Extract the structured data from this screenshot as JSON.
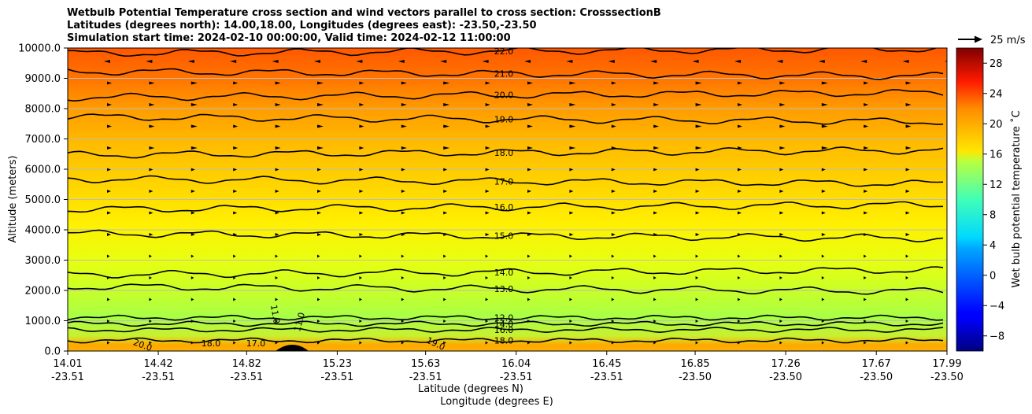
{
  "title": {
    "line1": "Wetbulb Potential Temperature cross section and wind vectors parallel to cross section: CrosssectionB",
    "line2": "Latitudes (degrees north): 14.00,18.00, Longitudes (degrees east): -23.50,-23.50",
    "line3": "Simulation start time: 2024-02-10 00:00:00, Valid time: 2024-02-12 11:00:00"
  },
  "chart_data": {
    "type": "heatmap",
    "ylabel": "Altitude (meters)",
    "xlabel_line1": "Latitude (degrees N)",
    "xlabel_line2": "Longitude (degrees E)",
    "ylim": [
      0,
      10000
    ],
    "y_ticks": [
      "0.0",
      "1000.0",
      "2000.0",
      "3000.0",
      "4000.0",
      "5000.0",
      "6000.0",
      "7000.0",
      "8000.0",
      "9000.0",
      "10000.0"
    ],
    "x_ticks": [
      {
        "lat": "14.01",
        "lon": "-23.51"
      },
      {
        "lat": "14.42",
        "lon": "-23.51"
      },
      {
        "lat": "14.82",
        "lon": "-23.51"
      },
      {
        "lat": "15.23",
        "lon": "-23.51"
      },
      {
        "lat": "15.63",
        "lon": "-23.51"
      },
      {
        "lat": "16.04",
        "lon": "-23.51"
      },
      {
        "lat": "16.45",
        "lon": "-23.51"
      },
      {
        "lat": "16.85",
        "lon": "-23.50"
      },
      {
        "lat": "17.26",
        "lon": "-23.50"
      },
      {
        "lat": "17.67",
        "lon": "-23.50"
      },
      {
        "lat": "17.99",
        "lon": "-23.50"
      }
    ],
    "grid": "horizontal lines at y ticks",
    "colorbar": {
      "label": "Wet bulb potential temperature ˚C",
      "range": [
        -10,
        30
      ],
      "ticks": [
        "−8",
        "−4",
        "0",
        "4",
        "8",
        "12",
        "16",
        "20",
        "24",
        "28"
      ],
      "colormap": "jet"
    },
    "quiver_key": "25 m/s",
    "contours": [
      {
        "label": "22.0",
        "altitude": 9900
      },
      {
        "label": "21.0",
        "altitude": 9150
      },
      {
        "label": "20.0",
        "altitude": 8450
      },
      {
        "label": "19.0",
        "altitude": 7650
      },
      {
        "label": "18.0",
        "altitude": 6550
      },
      {
        "label": "17.0",
        "altitude": 5600
      },
      {
        "label": "16.0",
        "altitude": 4750
      },
      {
        "label": "15.0",
        "altitude": 3800
      },
      {
        "label": "14.0",
        "altitude": 2600
      },
      {
        "label": "13.0",
        "altitude": 2050
      },
      {
        "label": "12.0",
        "altitude": 1100
      },
      {
        "label": "14.0",
        "altitude": 900
      },
      {
        "label": "16.0",
        "altitude": 700
      },
      {
        "label": "18.0",
        "altitude": 350
      }
    ],
    "other_contour_labels": [
      "11.0",
      "11.0",
      "19.0",
      "20.0",
      "18.0",
      "17.0"
    ]
  }
}
